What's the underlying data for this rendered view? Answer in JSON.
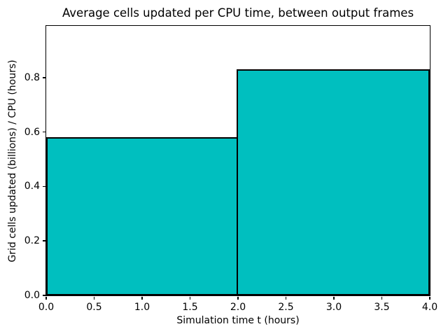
{
  "chart_data": {
    "type": "bar",
    "subtype": "histogram",
    "title": "Average cells updated per CPU time, between output frames",
    "xlabel": "Simulation time t (hours)",
    "ylabel": "Grid cells updated (billions) / CPU (hours)",
    "bins": [
      {
        "x_start": 0.0,
        "x_end": 2.0,
        "value": 0.58
      },
      {
        "x_start": 2.0,
        "x_end": 4.0,
        "value": 0.83
      }
    ],
    "xlim": [
      0.0,
      4.0
    ],
    "ylim": [
      0.0,
      0.99
    ],
    "xticks": [
      0.0,
      0.5,
      1.0,
      1.5,
      2.0,
      2.5,
      3.0,
      3.5,
      4.0
    ],
    "xtick_labels": [
      "0.0",
      "0.5",
      "1.0",
      "1.5",
      "2.0",
      "2.5",
      "3.0",
      "3.5",
      "4.0"
    ],
    "yticks": [
      0.0,
      0.2,
      0.4,
      0.6,
      0.8
    ],
    "ytick_labels": [
      "0.0",
      "0.2",
      "0.4",
      "0.6",
      "0.8"
    ],
    "bar_fill_color": "#00BFBF",
    "bar_edge_color": "#000000",
    "grid": false,
    "legend": null
  }
}
